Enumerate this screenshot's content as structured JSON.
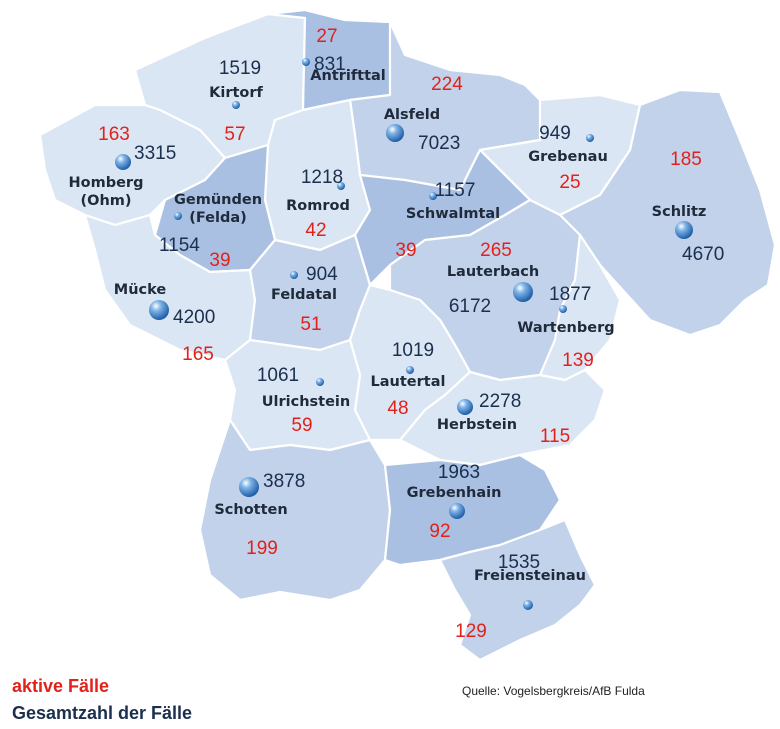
{
  "colors": {
    "active": "#e3211b",
    "total": "#1b2f4e",
    "region_light": "#dbe6f4",
    "region_mid": "#c1d2ea",
    "region_dark": "#a9c0e2",
    "marker": "#3a7fc8"
  },
  "legend": {
    "active_label": "aktive Fälle",
    "total_label": "Gesamtzahl der Fälle"
  },
  "source": "Quelle: Vogelsbergkreis/AfB Fulda",
  "municipalities": [
    {
      "id": "antrifttal",
      "name": "Antrifttal",
      "total": "831",
      "active": "27"
    },
    {
      "id": "kirtorf",
      "name": "Kirtorf",
      "total": "1519",
      "active": "57"
    },
    {
      "id": "alsfeld",
      "name": "Alsfeld",
      "total": "7023",
      "active": "224"
    },
    {
      "id": "grebenau",
      "name": "Grebenau",
      "total": "949",
      "active": "25"
    },
    {
      "id": "homberg",
      "name": "Homberg\n(Ohm)",
      "total": "3315",
      "active": "163"
    },
    {
      "id": "schlitz",
      "name": "Schlitz",
      "total": "4670",
      "active": "185"
    },
    {
      "id": "gemuenden",
      "name": "Gemünden\n(Felda)",
      "total": "1154",
      "active": "39"
    },
    {
      "id": "romrod",
      "name": "Romrod",
      "total": "1218",
      "active": "42"
    },
    {
      "id": "schwalmtal",
      "name": "Schwalmtal",
      "total": "1157",
      "active": "39"
    },
    {
      "id": "lauterbach",
      "name": "Lauterbach",
      "total": "6172",
      "active": "265"
    },
    {
      "id": "wartenberg",
      "name": "Wartenberg",
      "total": "1877",
      "active": "139"
    },
    {
      "id": "muecke",
      "name": "Mücke",
      "total": "4200",
      "active": "165"
    },
    {
      "id": "feldatal",
      "name": "Feldatal",
      "total": "904",
      "active": "51"
    },
    {
      "id": "lautertal",
      "name": "Lautertal",
      "total": "1019",
      "active": "48"
    },
    {
      "id": "ulrichstein",
      "name": "Ulrichstein",
      "total": "1061",
      "active": "59"
    },
    {
      "id": "herbstein",
      "name": "Herbstein",
      "total": "2278",
      "active": "115"
    },
    {
      "id": "schotten",
      "name": "Schotten",
      "total": "3878",
      "active": "199"
    },
    {
      "id": "grebenhain",
      "name": "Grebenhain",
      "total": "1963",
      "active": "92"
    },
    {
      "id": "freiensteinau",
      "name": "Freiensteinau",
      "total": "1535",
      "active": "129"
    }
  ]
}
